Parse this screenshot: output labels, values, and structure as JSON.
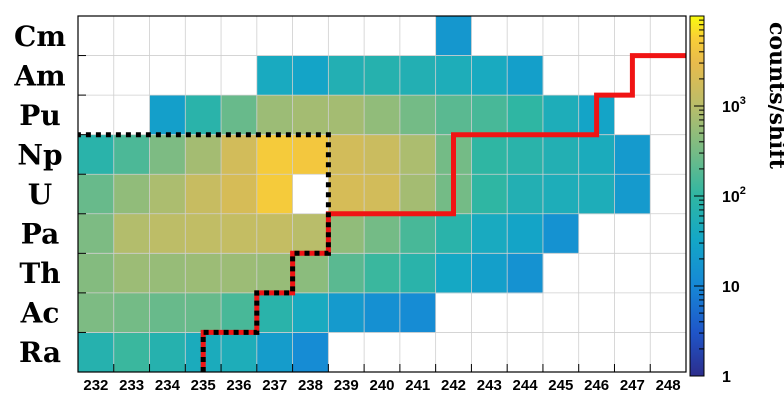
{
  "chart_data": {
    "type": "heatmap",
    "title": "",
    "xlabel": "",
    "ylabel": "",
    "x_categories": [
      "232",
      "233",
      "234",
      "235",
      "236",
      "237",
      "238",
      "239",
      "240",
      "241",
      "242",
      "243",
      "244",
      "245",
      "246",
      "247",
      "248"
    ],
    "y_categories": [
      "Ra",
      "Ac",
      "Th",
      "Pa",
      "U",
      "Np",
      "Pu",
      "Am",
      "Cm"
    ],
    "colorbar": {
      "title": "counts/shift",
      "scale": "log",
      "range": [
        1,
        10000
      ],
      "tick_labels": [
        "1",
        "10",
        "10",
        "10"
      ],
      "tick_exponents": [
        "",
        "",
        "2",
        "3"
      ]
    },
    "z_comment_units": "counts/shift",
    "cells": [
      {
        "element": "Ra",
        "x": "232",
        "value": 70
      },
      {
        "element": "Ra",
        "x": "233",
        "value": 120
      },
      {
        "element": "Ra",
        "x": "234",
        "value": 70
      },
      {
        "element": "Ra",
        "x": "235",
        "value": 45
      },
      {
        "element": "Ra",
        "x": "236",
        "value": 50
      },
      {
        "element": "Ra",
        "x": "237",
        "value": 22
      },
      {
        "element": "Ra",
        "x": "238",
        "value": 12
      },
      {
        "element": "Ac",
        "x": "232",
        "value": 350
      },
      {
        "element": "Ac",
        "x": "233",
        "value": 300
      },
      {
        "element": "Ac",
        "x": "234",
        "value": 250
      },
      {
        "element": "Ac",
        "x": "235",
        "value": 250
      },
      {
        "element": "Ac",
        "x": "236",
        "value": 150
      },
      {
        "element": "Ac",
        "x": "237",
        "value": 80
      },
      {
        "element": "Ac",
        "x": "238",
        "value": 40
      },
      {
        "element": "Ac",
        "x": "239",
        "value": 20
      },
      {
        "element": "Ac",
        "x": "240",
        "value": 14
      },
      {
        "element": "Ac",
        "x": "241",
        "value": 12
      },
      {
        "element": "Th",
        "x": "232",
        "value": 400
      },
      {
        "element": "Th",
        "x": "233",
        "value": 600
      },
      {
        "element": "Th",
        "x": "234",
        "value": 550
      },
      {
        "element": "Th",
        "x": "235",
        "value": 600
      },
      {
        "element": "Th",
        "x": "236",
        "value": 600
      },
      {
        "element": "Th",
        "x": "237",
        "value": 550
      },
      {
        "element": "Th",
        "x": "238",
        "value": 450
      },
      {
        "element": "Th",
        "x": "239",
        "value": 200
      },
      {
        "element": "Th",
        "x": "240",
        "value": 120
      },
      {
        "element": "Th",
        "x": "241",
        "value": 80
      },
      {
        "element": "Th",
        "x": "242",
        "value": 35
      },
      {
        "element": "Th",
        "x": "243",
        "value": 25
      },
      {
        "element": "Th",
        "x": "244",
        "value": 15
      },
      {
        "element": "Pa",
        "x": "232",
        "value": 350
      },
      {
        "element": "Pa",
        "x": "233",
        "value": 900
      },
      {
        "element": "Pa",
        "x": "234",
        "value": 1100
      },
      {
        "element": "Pa",
        "x": "235",
        "value": 1200
      },
      {
        "element": "Pa",
        "x": "236",
        "value": 1300
      },
      {
        "element": "Pa",
        "x": "237",
        "value": 1300
      },
      {
        "element": "Pa",
        "x": "238",
        "value": 1000
      },
      {
        "element": "Pa",
        "x": "239",
        "value": 500
      },
      {
        "element": "Pa",
        "x": "240",
        "value": 300
      },
      {
        "element": "Pa",
        "x": "241",
        "value": 150
      },
      {
        "element": "Pa",
        "x": "242",
        "value": 80
      },
      {
        "element": "Pa",
        "x": "243",
        "value": 40
      },
      {
        "element": "Pa",
        "x": "244",
        "value": 30
      },
      {
        "element": "Pa",
        "x": "245",
        "value": 15
      },
      {
        "element": "U",
        "x": "232",
        "value": 250
      },
      {
        "element": "U",
        "x": "233",
        "value": 500
      },
      {
        "element": "U",
        "x": "234",
        "value": 800
      },
      {
        "element": "U",
        "x": "235",
        "value": 1400
      },
      {
        "element": "U",
        "x": "236",
        "value": 2000
      },
      {
        "element": "U",
        "x": "237",
        "value": 5000
      },
      {
        "element": "U",
        "x": "239",
        "value": 2000
      },
      {
        "element": "U",
        "x": "240",
        "value": 1800
      },
      {
        "element": "U",
        "x": "241",
        "value": 700
      },
      {
        "element": "U",
        "x": "242",
        "value": 300
      },
      {
        "element": "U",
        "x": "243",
        "value": 100
      },
      {
        "element": "U",
        "x": "244",
        "value": 60
      },
      {
        "element": "U",
        "x": "245",
        "value": 50
      },
      {
        "element": "U",
        "x": "246",
        "value": 50
      },
      {
        "element": "U",
        "x": "247",
        "value": 20
      },
      {
        "element": "Np",
        "x": "232",
        "value": 80
      },
      {
        "element": "Np",
        "x": "233",
        "value": 160
      },
      {
        "element": "Np",
        "x": "234",
        "value": 350
      },
      {
        "element": "Np",
        "x": "235",
        "value": 700
      },
      {
        "element": "Np",
        "x": "236",
        "value": 1800
      },
      {
        "element": "Np",
        "x": "237",
        "value": 5000
      },
      {
        "element": "Np",
        "x": "238",
        "value": 4500
      },
      {
        "element": "Np",
        "x": "239",
        "value": 1800
      },
      {
        "element": "Np",
        "x": "240",
        "value": 1500
      },
      {
        "element": "Np",
        "x": "241",
        "value": 800
      },
      {
        "element": "Np",
        "x": "242",
        "value": 300
      },
      {
        "element": "Np",
        "x": "243",
        "value": 100
      },
      {
        "element": "Np",
        "x": "244",
        "value": 80
      },
      {
        "element": "Np",
        "x": "245",
        "value": 60
      },
      {
        "element": "Np",
        "x": "246",
        "value": 45
      },
      {
        "element": "Np",
        "x": "247",
        "value": 20
      },
      {
        "element": "Pu",
        "x": "234",
        "value": 25
      },
      {
        "element": "Pu",
        "x": "235",
        "value": 80
      },
      {
        "element": "Pu",
        "x": "236",
        "value": 250
      },
      {
        "element": "Pu",
        "x": "237",
        "value": 600
      },
      {
        "element": "Pu",
        "x": "238",
        "value": 700
      },
      {
        "element": "Pu",
        "x": "239",
        "value": 700
      },
      {
        "element": "Pu",
        "x": "240",
        "value": 500
      },
      {
        "element": "Pu",
        "x": "241",
        "value": 300
      },
      {
        "element": "Pu",
        "x": "242",
        "value": 200
      },
      {
        "element": "Pu",
        "x": "243",
        "value": 150
      },
      {
        "element": "Pu",
        "x": "244",
        "value": 100
      },
      {
        "element": "Pu",
        "x": "245",
        "value": 50
      },
      {
        "element": "Pu",
        "x": "246",
        "value": 30
      },
      {
        "element": "Am",
        "x": "237",
        "value": 40
      },
      {
        "element": "Am",
        "x": "238",
        "value": 30
      },
      {
        "element": "Am",
        "x": "239",
        "value": 60
      },
      {
        "element": "Am",
        "x": "240",
        "value": 70
      },
      {
        "element": "Am",
        "x": "241",
        "value": 60
      },
      {
        "element": "Am",
        "x": "242",
        "value": 50
      },
      {
        "element": "Am",
        "x": "243",
        "value": 40
      },
      {
        "element": "Am",
        "x": "244",
        "value": 25
      },
      {
        "element": "Cm",
        "x": "242",
        "value": 18
      }
    ],
    "lines": [
      {
        "style": "red-solid",
        "points": [
          [
            "234.5",
            "Ra-bottom"
          ]
        ]
      },
      {
        "style": "black-dotted",
        "points": []
      }
    ]
  }
}
